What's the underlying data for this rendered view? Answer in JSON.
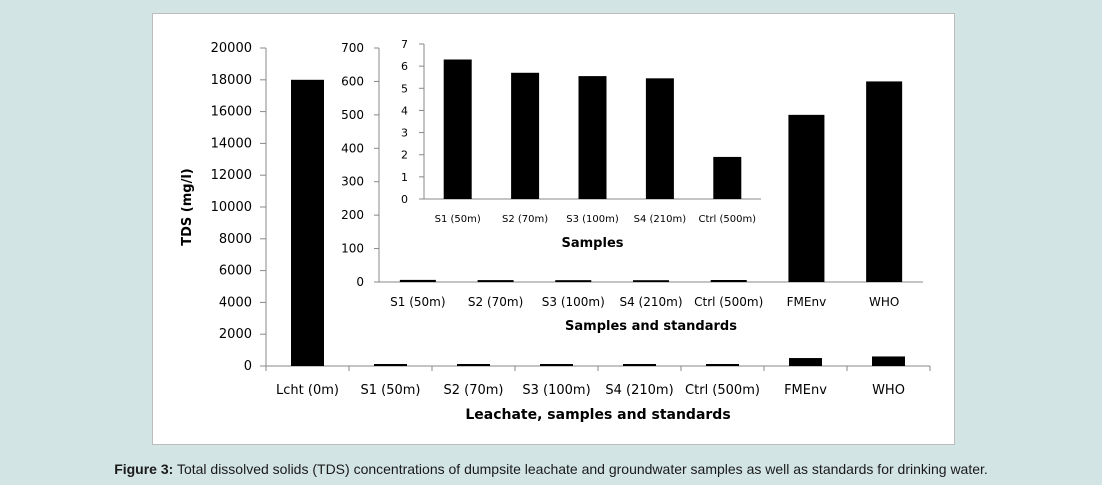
{
  "caption": {
    "label": "Figure 3:",
    "text": " Total dissolved solids (TDS) concentrations of dumpsite leachate and groundwater samples as well as standards for drinking water."
  },
  "colors": {
    "bar": "#000000",
    "axis": "#888888"
  },
  "chart_data": [
    {
      "id": "main",
      "type": "bar",
      "categories": [
        "Lcht (0m)",
        "S1 (50m)",
        "S2 (70m)",
        "S3 (100m)",
        "S4 (210m)",
        "Ctrl (500m)",
        "FMEnv",
        "WHO"
      ],
      "values": [
        18000,
        6.3,
        5.7,
        5.5,
        5.4,
        1.9,
        500,
        600
      ],
      "title": "",
      "xlabel": "Leachate, samples and standards",
      "ylabel": "TDS (mg/l)",
      "ylim": [
        0,
        20000
      ],
      "yticks": [
        "0",
        "2000",
        "4000",
        "6000",
        "8000",
        "10000",
        "12000",
        "14000",
        "16000",
        "18000",
        "20000"
      ],
      "grid": false
    },
    {
      "id": "inset1",
      "type": "bar",
      "categories": [
        "S1 (50m)",
        "S2 (70m)",
        "S3 (100m)",
        "S4 (210m)",
        "Ctrl (500m)",
        "FMEnv",
        "WHO"
      ],
      "values": [
        6.3,
        5.7,
        5.5,
        5.4,
        1.9,
        500,
        600
      ],
      "title": "",
      "xlabel": "Samples and standards",
      "ylabel": "",
      "ylim": [
        0,
        700
      ],
      "yticks": [
        "0",
        "100",
        "200",
        "300",
        "400",
        "500",
        "600",
        "700"
      ],
      "grid": false
    },
    {
      "id": "inset2",
      "type": "bar",
      "categories": [
        "S1 (50m)",
        "S2 (70m)",
        "S3 (100m)",
        "S4 (210m)",
        "Ctrl (500m)"
      ],
      "values": [
        6.3,
        5.7,
        5.55,
        5.45,
        1.9
      ],
      "title": "",
      "xlabel": "Samples",
      "ylabel": "",
      "ylim": [
        0,
        7
      ],
      "yticks": [
        "0",
        "1",
        "2",
        "3",
        "4",
        "5",
        "6",
        "7"
      ],
      "grid": false
    }
  ]
}
